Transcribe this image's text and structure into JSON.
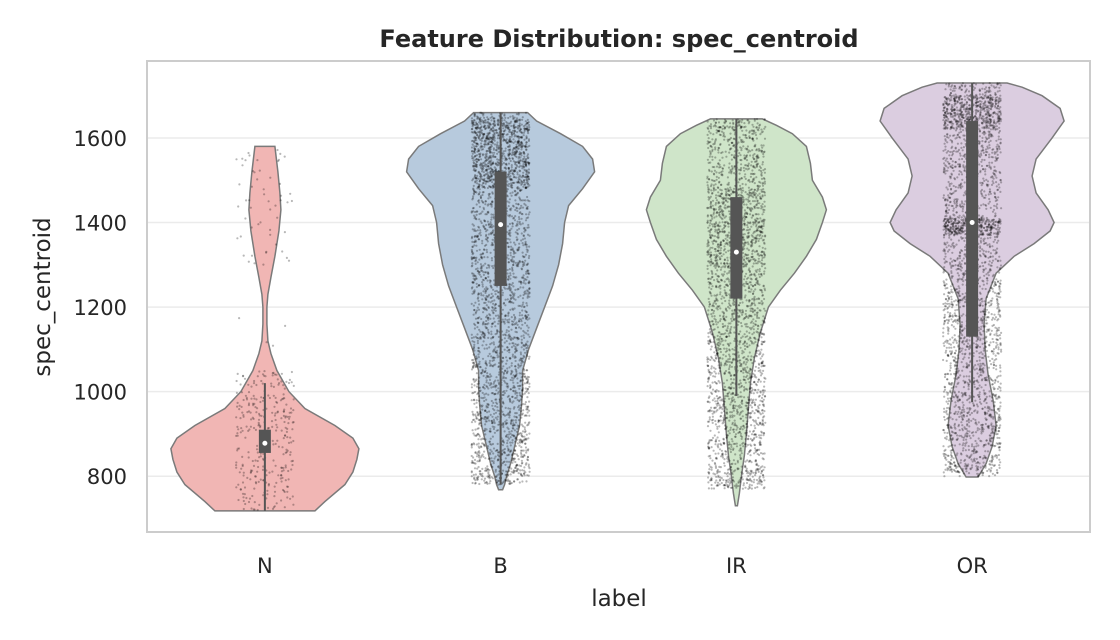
{
  "chart_data": {
    "type": "violin",
    "title": "Feature Distribution: spec_centroid",
    "xlabel": "label",
    "ylabel": "spec_centroid",
    "categories": [
      "N",
      "B",
      "IR",
      "OR"
    ],
    "yticks": [
      800,
      1000,
      1200,
      1400,
      1600
    ],
    "ylim": [
      668,
      1782
    ],
    "grid": "horizontal",
    "overlay": "jittered strip points (black, semi-transparent) plus inner box (median, IQR, whiskers)",
    "colors": [
      "#f1b6b4",
      "#b7cadd",
      "#cfe5c9",
      "#dbcde0"
    ],
    "series": [
      {
        "category": "N",
        "min": 718,
        "max": 1580,
        "q1": 855,
        "median": 878,
        "q3": 910,
        "whisker_low": 718,
        "whisker_high": 1020,
        "density": [
          [
            718,
            50
          ],
          [
            740,
            60
          ],
          [
            780,
            80
          ],
          [
            810,
            88
          ],
          [
            840,
            92
          ],
          [
            865,
            94
          ],
          [
            890,
            88
          ],
          [
            920,
            70
          ],
          [
            960,
            40
          ],
          [
            1000,
            24
          ],
          [
            1050,
            12
          ],
          [
            1090,
            6
          ],
          [
            1120,
            3
          ],
          [
            1160,
            2
          ],
          [
            1200,
            2
          ],
          [
            1230,
            3
          ],
          [
            1270,
            6
          ],
          [
            1320,
            10
          ],
          [
            1380,
            14
          ],
          [
            1430,
            16
          ],
          [
            1470,
            15
          ],
          [
            1520,
            13
          ],
          [
            1560,
            11
          ],
          [
            1580,
            10
          ]
        ],
        "strip": [
          {
            "from": 718,
            "to": 1050,
            "n": 320
          },
          {
            "from": 1100,
            "to": 1180,
            "n": 4
          },
          {
            "from": 1300,
            "to": 1580,
            "n": 55
          }
        ]
      },
      {
        "category": "B",
        "min": 768,
        "max": 1660,
        "q1": 1250,
        "median": 1395,
        "q3": 1520,
        "whisker_low": 780,
        "whisker_high": 1660,
        "density": [
          [
            768,
            2
          ],
          [
            780,
            4
          ],
          [
            800,
            6
          ],
          [
            830,
            10
          ],
          [
            870,
            14
          ],
          [
            920,
            19
          ],
          [
            970,
            21
          ],
          [
            1010,
            22
          ],
          [
            1050,
            22
          ],
          [
            1100,
            28
          ],
          [
            1150,
            36
          ],
          [
            1200,
            44
          ],
          [
            1250,
            52
          ],
          [
            1300,
            58
          ],
          [
            1350,
            62
          ],
          [
            1400,
            64
          ],
          [
            1440,
            68
          ],
          [
            1480,
            82
          ],
          [
            1520,
            94
          ],
          [
            1550,
            92
          ],
          [
            1580,
            82
          ],
          [
            1610,
            60
          ],
          [
            1640,
            36
          ],
          [
            1660,
            27
          ]
        ],
        "strip": [
          {
            "from": 780,
            "to": 1660,
            "n": 2600
          },
          {
            "from": 1480,
            "to": 1650,
            "n": 500
          }
        ]
      },
      {
        "category": "IR",
        "min": 730,
        "max": 1645,
        "q1": 1220,
        "median": 1330,
        "q3": 1460,
        "whisker_low": 990,
        "whisker_high": 1645,
        "density": [
          [
            730,
            1
          ],
          [
            760,
            3
          ],
          [
            800,
            5
          ],
          [
            850,
            8
          ],
          [
            900,
            10
          ],
          [
            960,
            12
          ],
          [
            1020,
            14
          ],
          [
            1080,
            18
          ],
          [
            1140,
            24
          ],
          [
            1200,
            32
          ],
          [
            1240,
            44
          ],
          [
            1280,
            58
          ],
          [
            1320,
            70
          ],
          [
            1360,
            80
          ],
          [
            1400,
            86
          ],
          [
            1430,
            90
          ],
          [
            1460,
            86
          ],
          [
            1500,
            76
          ],
          [
            1540,
            74
          ],
          [
            1580,
            70
          ],
          [
            1610,
            56
          ],
          [
            1630,
            40
          ],
          [
            1645,
            26
          ]
        ],
        "strip": [
          {
            "from": 770,
            "to": 1645,
            "n": 2400
          },
          {
            "from": 1300,
            "to": 1480,
            "n": 300
          }
        ]
      },
      {
        "category": "OR",
        "min": 798,
        "max": 1730,
        "q1": 1130,
        "median": 1400,
        "q3": 1640,
        "whisker_low": 975,
        "whisker_high": 1730,
        "density": [
          [
            798,
            6
          ],
          [
            830,
            14
          ],
          [
            870,
            20
          ],
          [
            920,
            24
          ],
          [
            980,
            21
          ],
          [
            1040,
            16
          ],
          [
            1100,
            13
          ],
          [
            1160,
            12
          ],
          [
            1220,
            14
          ],
          [
            1280,
            24
          ],
          [
            1320,
            42
          ],
          [
            1350,
            62
          ],
          [
            1380,
            78
          ],
          [
            1400,
            82
          ],
          [
            1430,
            76
          ],
          [
            1470,
            64
          ],
          [
            1510,
            60
          ],
          [
            1550,
            64
          ],
          [
            1600,
            80
          ],
          [
            1640,
            92
          ],
          [
            1670,
            88
          ],
          [
            1700,
            70
          ],
          [
            1720,
            50
          ],
          [
            1730,
            35
          ]
        ],
        "strip": [
          {
            "from": 800,
            "to": 1730,
            "n": 2400
          },
          {
            "from": 1370,
            "to": 1410,
            "n": 250
          },
          {
            "from": 1620,
            "to": 1700,
            "n": 350
          }
        ]
      }
    ]
  }
}
